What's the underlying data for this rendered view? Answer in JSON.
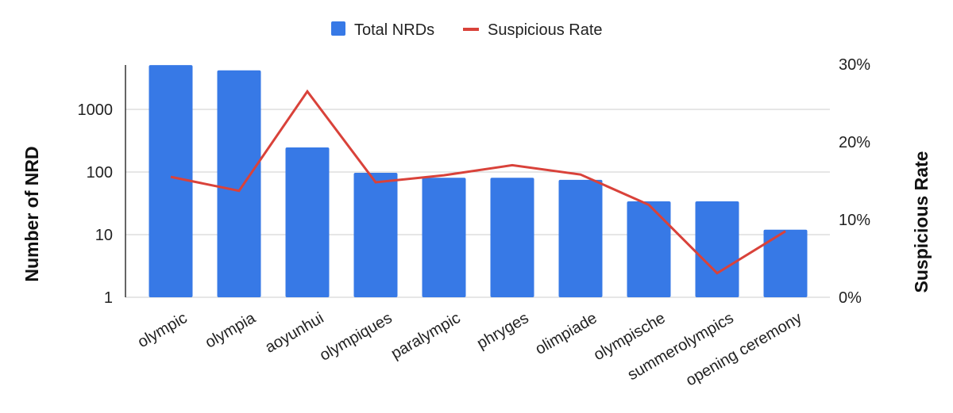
{
  "chart_data": {
    "type": "bar",
    "categories": [
      "olympic",
      "olympia",
      "aoyunhui",
      "olympiques",
      "paralympic",
      "phryges",
      "olimpiade",
      "olympische",
      "summerolympics",
      "opening ceremony"
    ],
    "series": [
      {
        "name": "Total NRDs",
        "type": "bar",
        "axis": "left",
        "color": "#3779e6",
        "values": [
          5100,
          4200,
          247,
          97,
          81,
          81,
          75,
          34,
          34,
          12
        ]
      },
      {
        "name": "Suspicious Rate",
        "type": "line",
        "axis": "right",
        "color": "#d9423a",
        "values": [
          15.5,
          13.7,
          26.5,
          14.8,
          15.7,
          17.0,
          15.8,
          11.9,
          3.1,
          8.5
        ]
      }
    ],
    "ylabel": "Number of NRD",
    "ylabel_right": "Suspicious Rate",
    "y_scale": "log",
    "ylim": [
      1,
      6000
    ],
    "y_ticks": [
      "1",
      "10",
      "100",
      "1000"
    ],
    "y_right_lim": [
      0,
      30
    ],
    "y_right_ticks": [
      "0%",
      "10%",
      "20%",
      "30%"
    ],
    "grid": true,
    "legend_position": "top"
  }
}
